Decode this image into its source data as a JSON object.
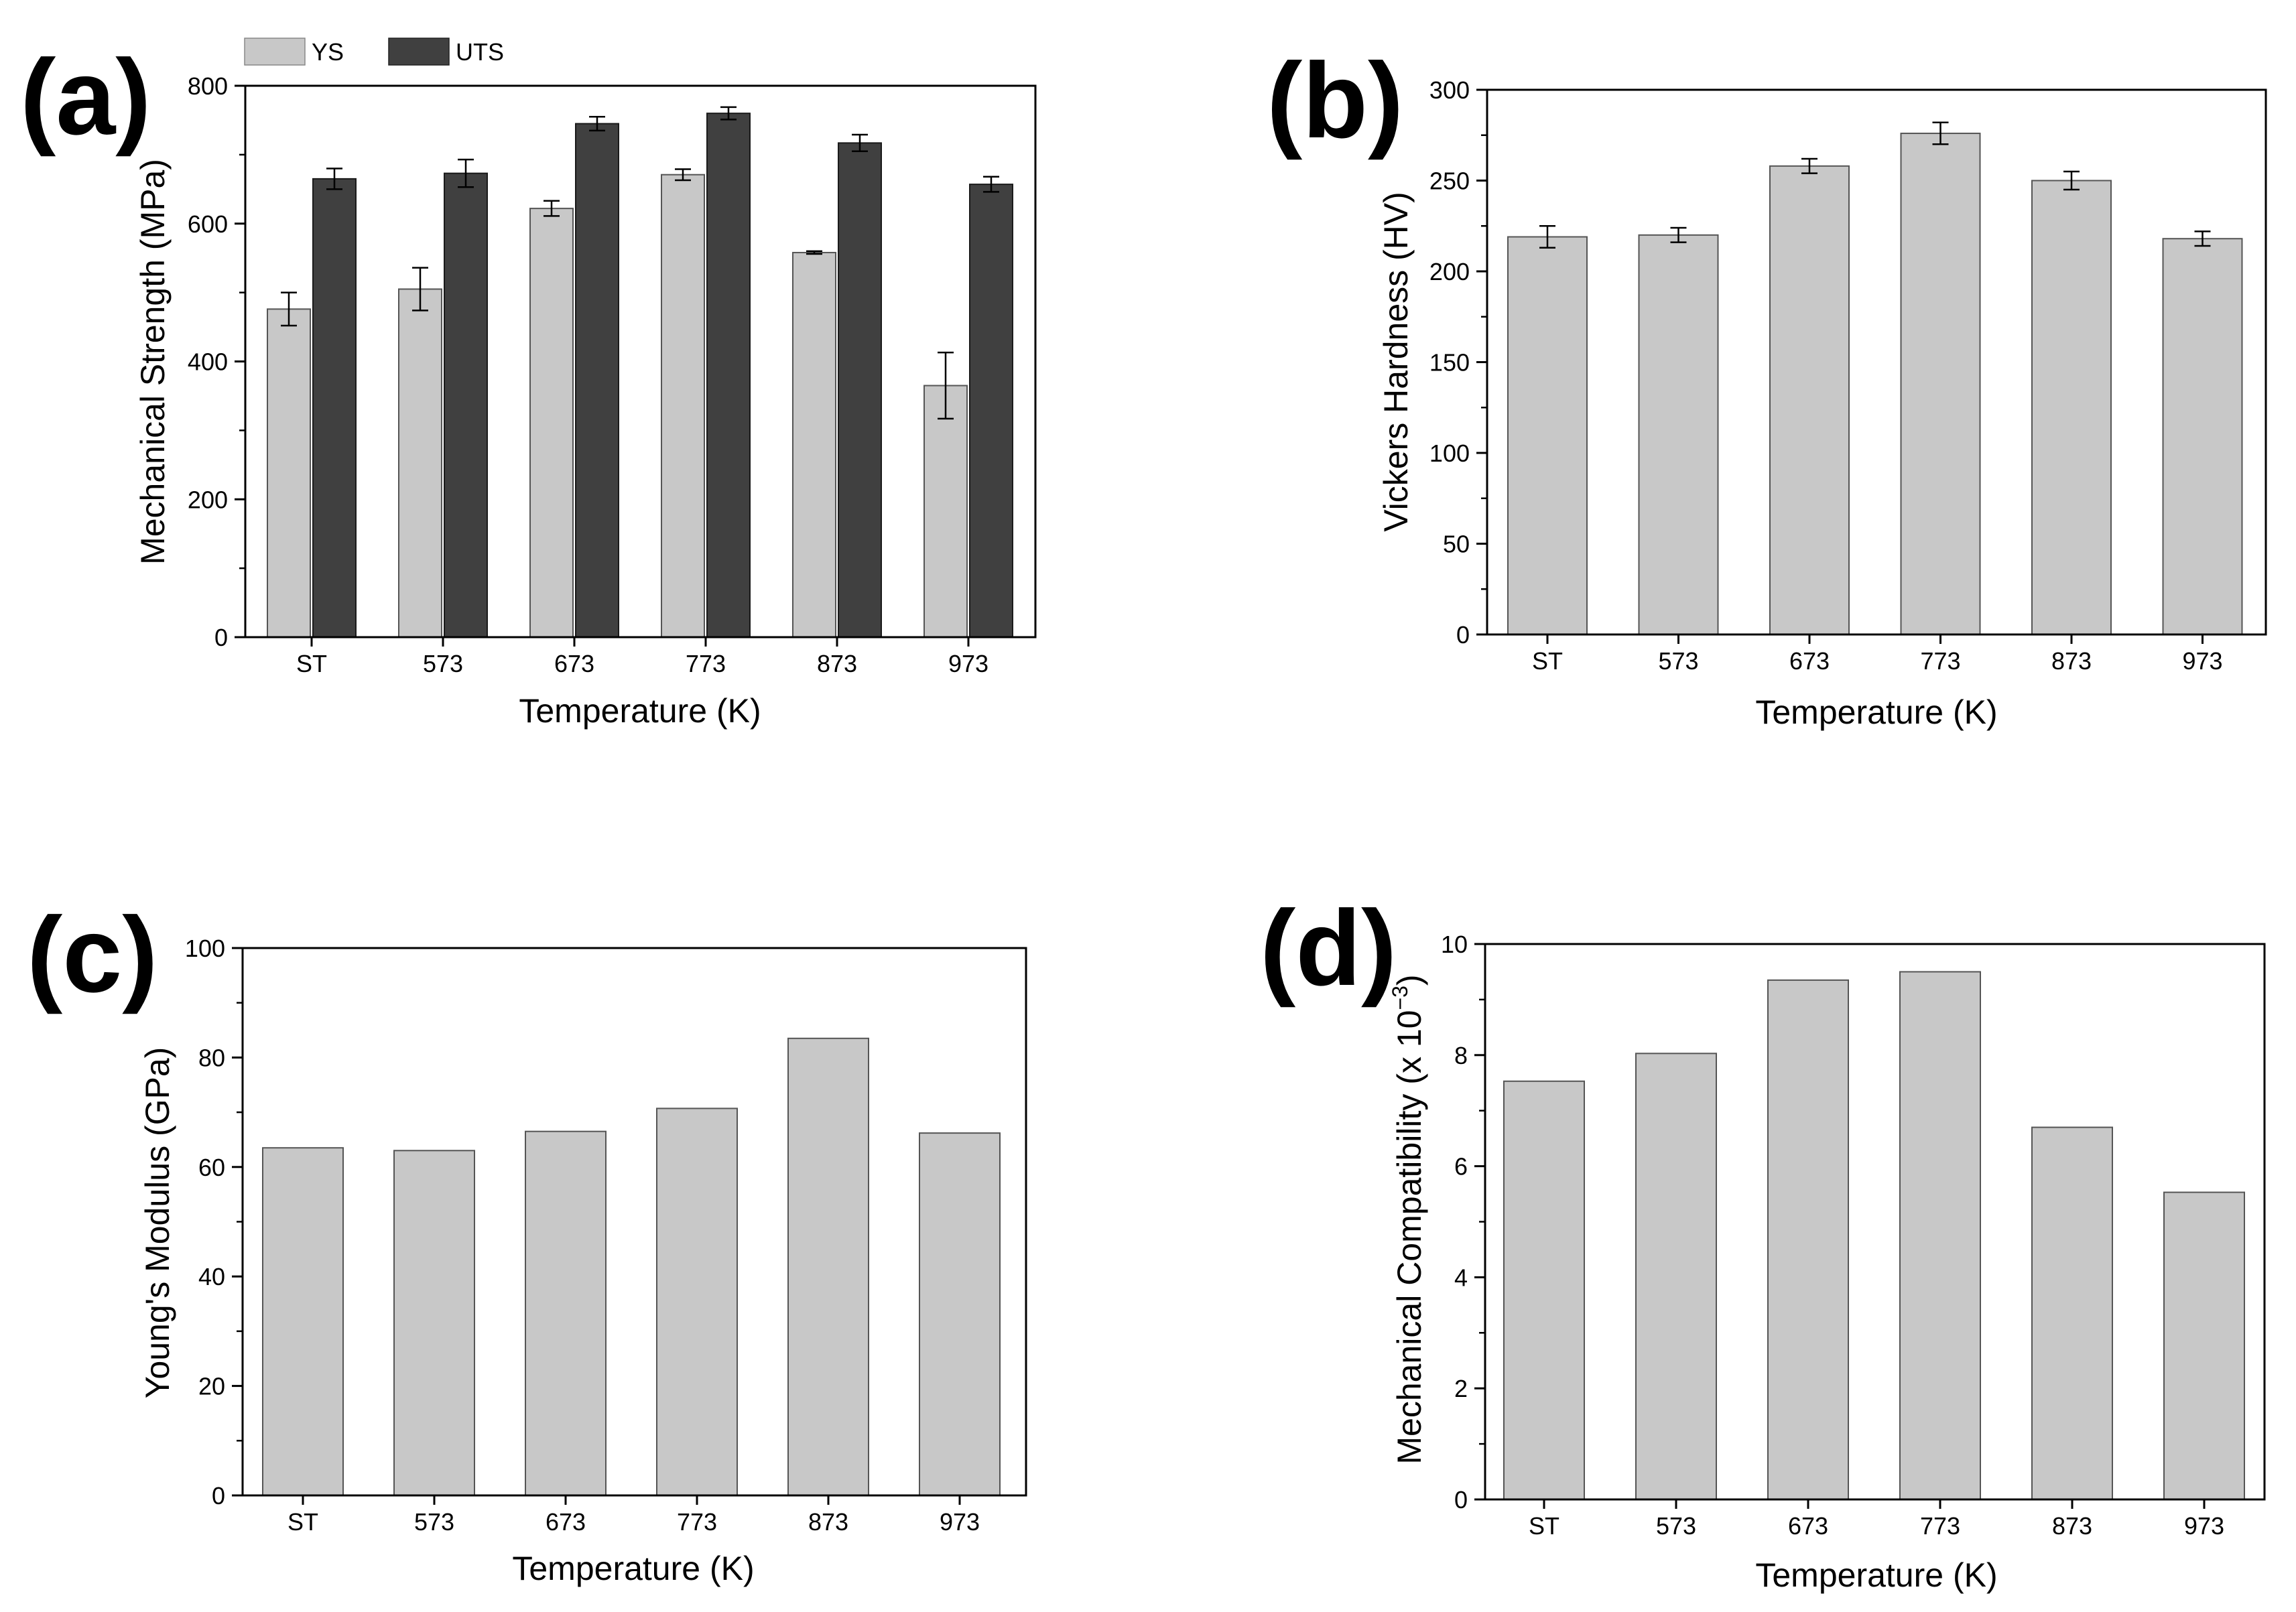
{
  "figure": {
    "panels": [
      {
        "panel_label": "(a)",
        "chart_data": {
          "type": "bar",
          "categories": [
            "ST",
            "573",
            "673",
            "773",
            "873",
            "973"
          ],
          "series": [
            {
              "name": "YS",
              "color": "#c8c8c8",
              "values": [
                476,
                505,
                622,
                671,
                558,
                365
              ],
              "errors": [
                24,
                31,
                11,
                8,
                2,
                48
              ]
            },
            {
              "name": "UTS",
              "color": "#404040",
              "values": [
                665,
                673,
                745,
                760,
                717,
                657
              ],
              "errors": [
                15,
                20,
                10,
                9,
                12,
                11
              ]
            }
          ],
          "xlabel": "Temperature (K)",
          "ylabel": "Mechanical Strength (MPa)",
          "ylim": [
            0,
            800
          ],
          "yticks": [
            0,
            200,
            400,
            600,
            800
          ],
          "legend_position": "top-left",
          "grid": false
        }
      },
      {
        "panel_label": "(b)",
        "chart_data": {
          "type": "bar",
          "categories": [
            "ST",
            "573",
            "673",
            "773",
            "873",
            "973"
          ],
          "series": [
            {
              "color": "#c8c8c8",
              "values": [
                219,
                220,
                258,
                276,
                250,
                218
              ],
              "errors": [
                6,
                4,
                4,
                6,
                5,
                4
              ]
            }
          ],
          "xlabel": "Temperature (K)",
          "ylabel": "Vickers Hardness (HV)",
          "ylim": [
            0,
            300
          ],
          "yticks": [
            0,
            50,
            100,
            150,
            200,
            250,
            300
          ],
          "grid": false
        }
      },
      {
        "panel_label": "(c)",
        "chart_data": {
          "type": "bar",
          "categories": [
            "ST",
            "573",
            "673",
            "773",
            "873",
            "973"
          ],
          "series": [
            {
              "color": "#c8c8c8",
              "values": [
                63.5,
                63.0,
                66.5,
                70.7,
                83.5,
                66.2
              ]
            }
          ],
          "xlabel": "Temperature (K)",
          "ylabel": "Young's Modulus (GPa)",
          "ylim": [
            0,
            100
          ],
          "yticks": [
            0,
            20,
            40,
            60,
            80,
            100
          ],
          "grid": false
        }
      },
      {
        "panel_label": "(d)",
        "chart_data": {
          "type": "bar",
          "categories": [
            "ST",
            "573",
            "673",
            "773",
            "873",
            "973"
          ],
          "series": [
            {
              "color": "#c8c8c8",
              "values": [
                7.53,
                8.03,
                9.35,
                9.5,
                6.7,
                5.53
              ]
            }
          ],
          "xlabel": "Temperature (K)",
          "ylabel": "Mechanical Compatibility (x 10",
          "ylabel_superscript": "−3",
          "ylabel_suffix": ")",
          "ylim": [
            0,
            10
          ],
          "yticks": [
            0,
            2,
            4,
            6,
            8,
            10
          ],
          "grid": false
        }
      }
    ]
  }
}
